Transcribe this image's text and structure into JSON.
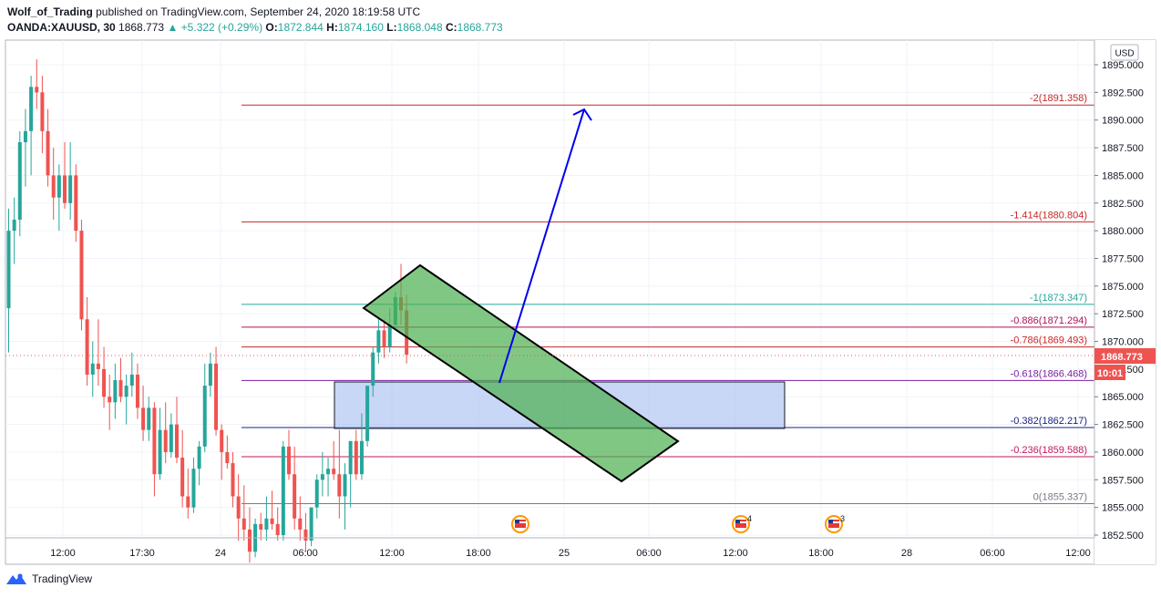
{
  "header": {
    "author": "Wolf_of_Trading",
    "published_text": "published on TradingView.com, September 24, 2020 18:19:58 UTC",
    "symbol": "OANDA:XAUUSD, 30",
    "last": "1868.773",
    "change": "+5.322 (+0.29%)",
    "o_label": "O:",
    "o": "1872.844",
    "h_label": "H:",
    "h": "1874.160",
    "l_label": "L:",
    "l": "1868.048",
    "c_label": "C:",
    "c": "1868.773"
  },
  "footer": {
    "brand": "TradingView"
  },
  "chart_data": {
    "type": "candlestick",
    "currency_label": "USD",
    "ylim": [
      1852.5,
      1895.0
    ],
    "y_ticks": [
      "1852.500",
      "1855.000",
      "1857.500",
      "1860.000",
      "1862.500",
      "1865.000",
      "1867.500",
      "1870.000",
      "1872.500",
      "1875.000",
      "1877.500",
      "1880.000",
      "1882.500",
      "1885.000",
      "1887.500",
      "1890.000",
      "1892.500",
      "1895.000"
    ],
    "x_ticks": [
      "12:00",
      "17:30",
      "24",
      "06:00",
      "12:00",
      "18:00",
      "25",
      "06:00",
      "12:00",
      "18:00",
      "28",
      "06:00",
      "12:00"
    ],
    "price_tag": "1868.773",
    "countdown": "10:01",
    "colors": {
      "up": "#26a69a",
      "down": "#ef5350",
      "arrow": "#0000ee",
      "channel": "#4caf50",
      "zone": "#a4bdf0"
    },
    "fib_levels": [
      {
        "label": "-2(1891.358)",
        "value": 1891.358,
        "color": "#c62828"
      },
      {
        "label": "-1.414(1880.804)",
        "value": 1880.804,
        "color": "#c62828"
      },
      {
        "label": "-1(1873.347)",
        "value": 1873.347,
        "color": "#26a69a"
      },
      {
        "label": "-0.886(1871.294)",
        "value": 1871.294,
        "color": "#ad1457"
      },
      {
        "label": "-0.786(1869.493)",
        "value": 1869.493,
        "color": "#c62828"
      },
      {
        "label": "-0.618(1866.468)",
        "value": 1866.468,
        "color": "#7b1fa2"
      },
      {
        "label": "-0.382(1862.217)",
        "value": 1862.217,
        "color": "#1a237e"
      },
      {
        "label": "-0.236(1859.588)",
        "value": 1859.588,
        "color": "#c2185b"
      },
      {
        "label": "0(1855.337)",
        "value": 1855.337,
        "color": "#787b86"
      }
    ],
    "candles": [
      [
        1873.0,
        1882.0,
        1869.0,
        1880.0
      ],
      [
        1880.0,
        1883.0,
        1877.0,
        1881.0
      ],
      [
        1881.0,
        1889.0,
        1879.5,
        1888.0
      ],
      [
        1888.0,
        1891.0,
        1884.0,
        1889.0
      ],
      [
        1889.0,
        1894.0,
        1885.0,
        1893.0
      ],
      [
        1893.0,
        1895.5,
        1891.0,
        1892.5
      ],
      [
        1892.5,
        1894.0,
        1887.0,
        1889.0
      ],
      [
        1889.0,
        1891.0,
        1884.0,
        1885.0
      ],
      [
        1885.0,
        1887.5,
        1881.0,
        1883.0
      ],
      [
        1883.0,
        1886.0,
        1880.0,
        1885.0
      ],
      [
        1885.0,
        1888.0,
        1882.0,
        1882.5
      ],
      [
        1882.5,
        1888.0,
        1881.0,
        1885.0
      ],
      [
        1885.0,
        1886.0,
        1879.0,
        1880.0
      ],
      [
        1880.0,
        1881.0,
        1871.0,
        1872.0
      ],
      [
        1872.0,
        1874.0,
        1866.0,
        1867.0
      ],
      [
        1867.0,
        1870.0,
        1865.0,
        1868.0
      ],
      [
        1868.0,
        1872.0,
        1866.0,
        1867.5
      ],
      [
        1867.5,
        1869.5,
        1864.0,
        1865.0
      ],
      [
        1865.0,
        1867.0,
        1862.0,
        1864.5
      ],
      [
        1864.5,
        1868.0,
        1863.0,
        1866.5
      ],
      [
        1866.5,
        1868.5,
        1864.5,
        1865.0
      ],
      [
        1865.0,
        1867.0,
        1862.5,
        1866.0
      ],
      [
        1866.0,
        1869.0,
        1865.0,
        1867.0
      ],
      [
        1867.0,
        1868.0,
        1863.0,
        1864.0
      ],
      [
        1864.0,
        1866.0,
        1861.0,
        1862.0
      ],
      [
        1862.0,
        1865.0,
        1861.0,
        1864.0
      ],
      [
        1864.0,
        1864.5,
        1856.0,
        1858.0
      ],
      [
        1858.0,
        1864.0,
        1857.5,
        1862.0
      ],
      [
        1862.0,
        1864.5,
        1859.0,
        1860.0
      ],
      [
        1860.0,
        1863.5,
        1859.5,
        1862.5
      ],
      [
        1862.5,
        1865.0,
        1859.0,
        1859.5
      ],
      [
        1859.5,
        1862.0,
        1855.0,
        1856.0
      ],
      [
        1856.0,
        1858.5,
        1854.0,
        1855.0
      ],
      [
        1855.0,
        1859.5,
        1854.5,
        1858.5
      ],
      [
        1858.5,
        1861.0,
        1857.0,
        1860.5
      ],
      [
        1860.5,
        1868.0,
        1860.0,
        1866.0
      ],
      [
        1866.0,
        1869.0,
        1865.0,
        1868.0
      ],
      [
        1868.0,
        1869.5,
        1861.5,
        1862.0
      ],
      [
        1862.0,
        1862.5,
        1857.5,
        1860.0
      ],
      [
        1860.0,
        1861.5,
        1858.5,
        1859.0
      ],
      [
        1859.0,
        1860.0,
        1855.0,
        1856.0
      ],
      [
        1856.0,
        1858.0,
        1852.0,
        1854.0
      ],
      [
        1854.0,
        1857.0,
        1852.0,
        1853.0
      ],
      [
        1853.0,
        1855.0,
        1850.0,
        1851.0
      ],
      [
        1851.0,
        1854.0,
        1850.5,
        1853.5
      ],
      [
        1853.5,
        1854.5,
        1852.0,
        1853.0
      ],
      [
        1853.0,
        1856.0,
        1852.0,
        1854.0
      ],
      [
        1854.0,
        1856.5,
        1853.0,
        1853.5
      ],
      [
        1853.5,
        1855.0,
        1852.0,
        1852.5
      ],
      [
        1852.5,
        1861.0,
        1852.0,
        1860.5
      ],
      [
        1860.5,
        1862.0,
        1857.5,
        1858.0
      ],
      [
        1858.0,
        1860.5,
        1853.0,
        1854.0
      ],
      [
        1854.0,
        1856.0,
        1852.0,
        1853.0
      ],
      [
        1853.0,
        1854.5,
        1851.0,
        1852.0
      ],
      [
        1852.0,
        1855.0,
        1851.5,
        1855.0
      ],
      [
        1855.0,
        1858.0,
        1854.0,
        1857.5
      ],
      [
        1857.5,
        1860.0,
        1856.0,
        1858.0
      ],
      [
        1858.0,
        1859.5,
        1856.0,
        1858.5
      ],
      [
        1858.5,
        1861.0,
        1857.5,
        1858.0
      ],
      [
        1858.0,
        1862.0,
        1854.0,
        1856.0
      ],
      [
        1856.0,
        1859.0,
        1853.0,
        1858.0
      ],
      [
        1858.0,
        1861.0,
        1855.0,
        1861.0
      ],
      [
        1861.0,
        1862.0,
        1857.5,
        1858.0
      ],
      [
        1858.0,
        1863.5,
        1857.5,
        1861.0
      ],
      [
        1861.0,
        1866.0,
        1860.5,
        1866.0
      ],
      [
        1866.0,
        1869.5,
        1865.0,
        1869.0
      ],
      [
        1869.0,
        1872.0,
        1868.0,
        1871.0
      ],
      [
        1871.0,
        1872.0,
        1868.5,
        1869.5
      ],
      [
        1869.5,
        1873.0,
        1869.0,
        1871.5
      ],
      [
        1871.5,
        1874.5,
        1871.0,
        1874.0
      ],
      [
        1874.0,
        1877.0,
        1871.5,
        1872.8
      ],
      [
        1872.8,
        1874.2,
        1868.0,
        1868.8
      ]
    ]
  }
}
